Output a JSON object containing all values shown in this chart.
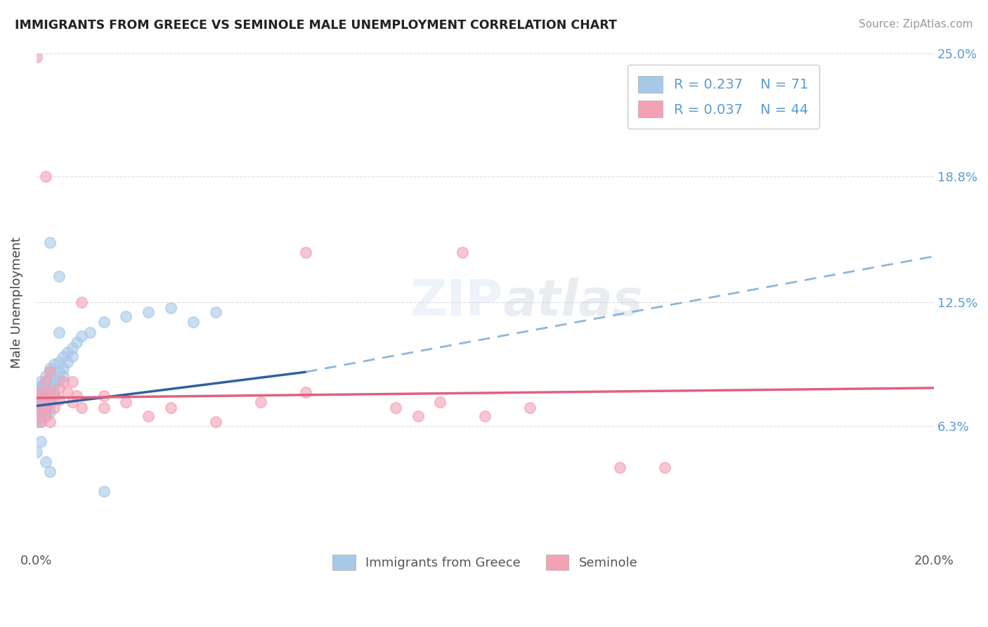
{
  "title": "IMMIGRANTS FROM GREECE VS SEMINOLE MALE UNEMPLOYMENT CORRELATION CHART",
  "source": "Source: ZipAtlas.com",
  "ylabel": "Male Unemployment",
  "xlim": [
    0.0,
    0.2
  ],
  "ylim": [
    0.0,
    0.25
  ],
  "yticks": [
    0.0,
    0.063,
    0.125,
    0.188,
    0.25
  ],
  "ytick_labels": [
    "",
    "6.3%",
    "12.5%",
    "18.8%",
    "25.0%"
  ],
  "xticks": [
    0.0,
    0.2
  ],
  "xtick_labels": [
    "0.0%",
    "20.0%"
  ],
  "blue_R": 0.237,
  "blue_N": 71,
  "pink_R": 0.037,
  "pink_N": 44,
  "blue_color": "#A8C8E8",
  "pink_color": "#F4A0B5",
  "blue_label": "Immigrants from Greece",
  "pink_label": "Seminole",
  "trend_blue_solid_color": "#3060A0",
  "trend_blue_dash_color": "#7AAAD0",
  "trend_pink_color": "#E06080",
  "watermark": "ZIPatlas",
  "background_color": "#FFFFFF",
  "blue_dots": [
    [
      0.0,
      0.078
    ],
    [
      0.0,
      0.072
    ],
    [
      0.0,
      0.075
    ],
    [
      0.0,
      0.068
    ],
    [
      0.0,
      0.08
    ],
    [
      0.0,
      0.065
    ],
    [
      0.0,
      0.082
    ],
    [
      0.0,
      0.07
    ],
    [
      0.0,
      0.076
    ],
    [
      0.0,
      0.073
    ],
    [
      0.0,
      0.069
    ],
    [
      0.0,
      0.071
    ],
    [
      0.001,
      0.08
    ],
    [
      0.001,
      0.076
    ],
    [
      0.001,
      0.072
    ],
    [
      0.001,
      0.068
    ],
    [
      0.001,
      0.083
    ],
    [
      0.001,
      0.065
    ],
    [
      0.001,
      0.085
    ],
    [
      0.001,
      0.071
    ],
    [
      0.001,
      0.074
    ],
    [
      0.001,
      0.078
    ],
    [
      0.001,
      0.069
    ],
    [
      0.001,
      0.067
    ],
    [
      0.002,
      0.082
    ],
    [
      0.002,
      0.078
    ],
    [
      0.002,
      0.075
    ],
    [
      0.002,
      0.07
    ],
    [
      0.002,
      0.085
    ],
    [
      0.002,
      0.068
    ],
    [
      0.002,
      0.088
    ],
    [
      0.002,
      0.073
    ],
    [
      0.002,
      0.08
    ],
    [
      0.003,
      0.086
    ],
    [
      0.003,
      0.082
    ],
    [
      0.003,
      0.078
    ],
    [
      0.003,
      0.074
    ],
    [
      0.003,
      0.09
    ],
    [
      0.003,
      0.07
    ],
    [
      0.003,
      0.092
    ],
    [
      0.004,
      0.088
    ],
    [
      0.004,
      0.084
    ],
    [
      0.004,
      0.08
    ],
    [
      0.004,
      0.094
    ],
    [
      0.005,
      0.09
    ],
    [
      0.005,
      0.086
    ],
    [
      0.005,
      0.11
    ],
    [
      0.005,
      0.095
    ],
    [
      0.006,
      0.092
    ],
    [
      0.006,
      0.088
    ],
    [
      0.006,
      0.098
    ],
    [
      0.007,
      0.095
    ],
    [
      0.007,
      0.1
    ],
    [
      0.008,
      0.098
    ],
    [
      0.008,
      0.102
    ],
    [
      0.009,
      0.105
    ],
    [
      0.01,
      0.108
    ],
    [
      0.012,
      0.11
    ],
    [
      0.015,
      0.115
    ],
    [
      0.02,
      0.118
    ],
    [
      0.025,
      0.12
    ],
    [
      0.03,
      0.122
    ],
    [
      0.035,
      0.115
    ],
    [
      0.04,
      0.12
    ],
    [
      0.003,
      0.155
    ],
    [
      0.005,
      0.138
    ],
    [
      0.0,
      0.05
    ],
    [
      0.001,
      0.055
    ],
    [
      0.002,
      0.045
    ],
    [
      0.003,
      0.04
    ],
    [
      0.015,
      0.03
    ]
  ],
  "pink_dots": [
    [
      0.0,
      0.078
    ],
    [
      0.0,
      0.072
    ],
    [
      0.001,
      0.075
    ],
    [
      0.001,
      0.07
    ],
    [
      0.001,
      0.08
    ],
    [
      0.001,
      0.065
    ],
    [
      0.002,
      0.078
    ],
    [
      0.002,
      0.072
    ],
    [
      0.002,
      0.085
    ],
    [
      0.002,
      0.068
    ],
    [
      0.003,
      0.08
    ],
    [
      0.003,
      0.075
    ],
    [
      0.003,
      0.09
    ],
    [
      0.004,
      0.078
    ],
    [
      0.004,
      0.072
    ],
    [
      0.005,
      0.082
    ],
    [
      0.005,
      0.076
    ],
    [
      0.006,
      0.085
    ],
    [
      0.007,
      0.08
    ],
    [
      0.008,
      0.075
    ],
    [
      0.008,
      0.085
    ],
    [
      0.009,
      0.078
    ],
    [
      0.01,
      0.072
    ],
    [
      0.01,
      0.125
    ],
    [
      0.015,
      0.078
    ],
    [
      0.015,
      0.072
    ],
    [
      0.02,
      0.075
    ],
    [
      0.025,
      0.068
    ],
    [
      0.03,
      0.072
    ],
    [
      0.04,
      0.065
    ],
    [
      0.05,
      0.075
    ],
    [
      0.06,
      0.08
    ],
    [
      0.06,
      0.15
    ],
    [
      0.08,
      0.072
    ],
    [
      0.085,
      0.068
    ],
    [
      0.09,
      0.075
    ],
    [
      0.095,
      0.15
    ],
    [
      0.1,
      0.068
    ],
    [
      0.11,
      0.072
    ],
    [
      0.13,
      0.042
    ],
    [
      0.14,
      0.042
    ],
    [
      0.0,
      0.248
    ],
    [
      0.002,
      0.188
    ],
    [
      0.003,
      0.065
    ]
  ],
  "blue_trend_x": [
    0.0,
    0.06,
    0.2
  ],
  "blue_trend_y": [
    0.073,
    0.09,
    0.148
  ],
  "pink_trend_x": [
    0.0,
    0.2
  ],
  "pink_trend_y": [
    0.077,
    0.082
  ]
}
